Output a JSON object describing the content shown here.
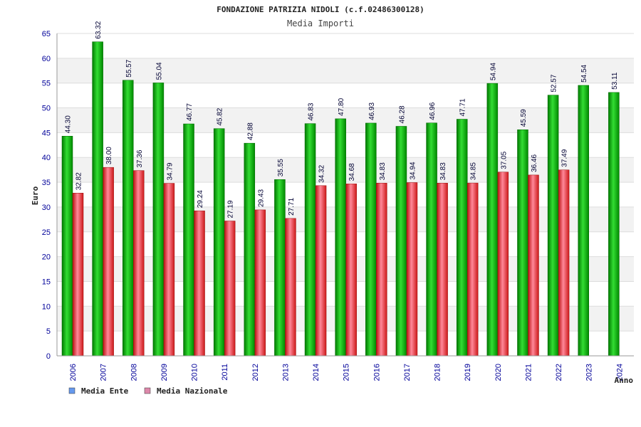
{
  "chart_data": {
    "type": "bar",
    "title": "FONDAZIONE PATRIZIA NIDOLI (c.f.02486300128)",
    "subtitle": "Media Importi",
    "ylabel": "Euro",
    "xlabel": "Anno",
    "ylim": [
      0,
      65
    ],
    "ytick_step": 5,
    "yticks": [
      "0",
      "5",
      "10",
      "15",
      "20",
      "25",
      "30",
      "35",
      "40",
      "45",
      "50",
      "55",
      "60",
      "65"
    ],
    "categories": [
      "2006",
      "2007",
      "2008",
      "2009",
      "2010",
      "2011",
      "2012",
      "2013",
      "2014",
      "2015",
      "2016",
      "2017",
      "2018",
      "2019",
      "2020",
      "2021",
      "2022",
      "2023",
      "2024"
    ],
    "series": [
      {
        "name": "Media Ente",
        "color": "#00aa00",
        "legend_color": "#6699ee",
        "values": [
          44.3,
          63.32,
          55.57,
          55.04,
          46.77,
          45.82,
          42.88,
          35.55,
          46.83,
          47.8,
          46.93,
          46.28,
          46.96,
          47.71,
          54.94,
          45.59,
          52.57,
          54.54,
          53.11
        ],
        "labels": [
          "44.30",
          "63.32",
          "55.57",
          "55.04",
          "46.77",
          "45.82",
          "42.88",
          "35.55",
          "46.83",
          "47.80",
          "46.93",
          "46.28",
          "46.96",
          "47.71",
          "54.94",
          "45.59",
          "52.57",
          "54.54",
          "53.11"
        ]
      },
      {
        "name": "Media Nazionale",
        "color": "#dd2222",
        "legend_color": "#dd88aa",
        "values": [
          32.82,
          38.0,
          37.36,
          34.79,
          29.24,
          27.19,
          29.43,
          27.71,
          34.32,
          34.68,
          34.83,
          34.94,
          34.83,
          34.85,
          37.05,
          36.46,
          37.49,
          null,
          null
        ],
        "labels": [
          "32.82",
          "38.00",
          "37.36",
          "34.79",
          "29.24",
          "27.19",
          "29.43",
          "27.71",
          "34.32",
          "34.68",
          "34.83",
          "34.94",
          "34.83",
          "34.85",
          "37.05",
          "36.46",
          "37.49",
          null,
          null
        ]
      }
    ],
    "legend_position": "bottom-left",
    "grid": true
  }
}
